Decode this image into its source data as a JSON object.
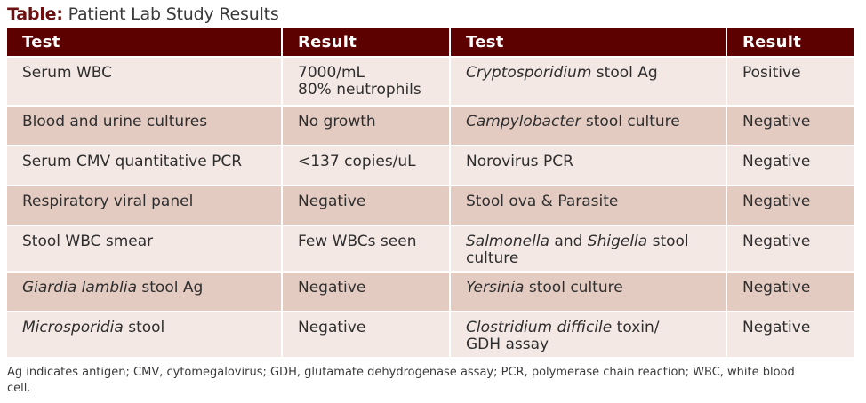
{
  "caption": {
    "lead": "Table:",
    "text": " Patient Lab Study Results"
  },
  "headers": [
    "Test",
    "Result",
    "Test",
    "Result"
  ],
  "rows": [
    {
      "test1": [
        {
          "t": "Serum WBC",
          "i": false
        }
      ],
      "result1": [
        "7000/mL",
        "80% neutrophils"
      ],
      "test2": [
        {
          "t": "Cryptosporidium",
          "i": true
        },
        {
          "t": " stool Ag",
          "i": false
        }
      ],
      "result2": "Positive"
    },
    {
      "test1": [
        {
          "t": "Blood and urine cultures",
          "i": false
        }
      ],
      "result1": [
        "No growth"
      ],
      "test2": [
        {
          "t": "Campylobacter",
          "i": true
        },
        {
          "t": " stool culture",
          "i": false
        }
      ],
      "result2": "Negative"
    },
    {
      "test1": [
        {
          "t": "Serum CMV quantitative PCR",
          "i": false
        }
      ],
      "result1": [
        "<137 copies/uL"
      ],
      "test2": [
        {
          "t": "Norovirus PCR",
          "i": false
        }
      ],
      "result2": "Negative"
    },
    {
      "test1": [
        {
          "t": "Respiratory viral panel",
          "i": false
        }
      ],
      "result1": [
        "Negative"
      ],
      "test2": [
        {
          "t": "Stool ova & Parasite",
          "i": false
        }
      ],
      "result2": "Negative"
    },
    {
      "test1": [
        {
          "t": "Stool WBC smear",
          "i": false
        }
      ],
      "result1": [
        "Few WBCs seen"
      ],
      "test2": [
        {
          "t": "Salmonella",
          "i": true
        },
        {
          "t": " and ",
          "i": false
        },
        {
          "t": "Shigella",
          "i": true
        },
        {
          "t": " stool culture",
          "i": false
        }
      ],
      "result2": "Negative"
    },
    {
      "test1": [
        {
          "t": "Giardia lamblia",
          "i": true
        },
        {
          "t": " stool Ag",
          "i": false
        }
      ],
      "result1": [
        "Negative"
      ],
      "test2": [
        {
          "t": "Yersinia",
          "i": true
        },
        {
          "t": " stool culture",
          "i": false
        }
      ],
      "result2": "Negative"
    },
    {
      "test1": [
        {
          "t": "Microsporidia",
          "i": true
        },
        {
          "t": " stool",
          "i": false
        }
      ],
      "result1": [
        "Negative"
      ],
      "test2": [
        {
          "t": "Clostridium difficile",
          "i": true
        },
        {
          "t": " toxin/",
          "i": false
        },
        {
          "t": "GDH assay",
          "i": false,
          "br": true
        }
      ],
      "result2": "Negative"
    }
  ],
  "footnote": "Ag indicates antigen; CMV, cytomegalovirus; GDH, glutamate dehydrogenase assay; PCR, polymerase chain reaction; WBC, white blood cell.",
  "colors": {
    "header_bg": "#5c0000",
    "caption_lead": "#6b0f10",
    "row_light": "#f4e8e4",
    "row_dark": "#e3cbc2"
  }
}
